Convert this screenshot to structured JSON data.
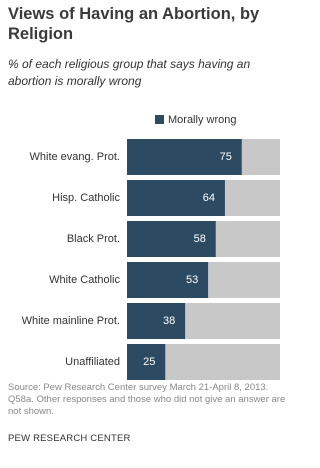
{
  "chart_data": {
    "type": "bar",
    "orientation": "horizontal",
    "title": "Views of Having an Abortion, by Religion",
    "subtitle": "% of each religious group that says having an abortion is morally wrong",
    "categories": [
      "White evang. Prot.",
      "Hisp. Catholic",
      "Black Prot.",
      "White Catholic",
      "White mainline Prot.",
      "Unaffiliated"
    ],
    "series": [
      {
        "name": "Morally wrong",
        "color": "#2d4a63",
        "values": [
          75,
          64,
          58,
          53,
          38,
          25
        ]
      }
    ],
    "xlim": [
      0,
      100
    ],
    "source": "Source: Pew Research Center survey March 21-April 8, 2013. Q58a. Other responses and those who did not give an answer are not shown.",
    "credit": "PEW RESEARCH CENTER"
  }
}
